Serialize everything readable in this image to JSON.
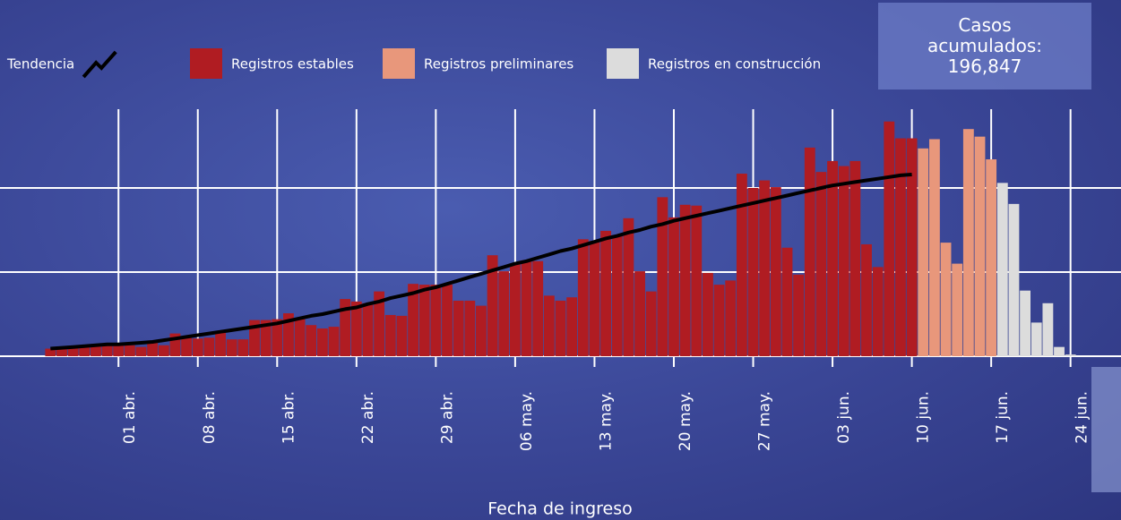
{
  "chart_data": {
    "type": "bar",
    "stacked": false,
    "x_label": "Fecha de ingreso",
    "cumulative_cases_title": "Casos acumulados:",
    "cumulative_cases": {
      "value": 196847,
      "label": "196,847"
    },
    "categories": [
      null,
      null,
      null,
      null,
      null,
      null,
      "01 abr.",
      null,
      null,
      null,
      null,
      null,
      null,
      "08 abr.",
      null,
      null,
      null,
      null,
      null,
      null,
      "15 abr.",
      null,
      null,
      null,
      null,
      null,
      null,
      "22 abr.",
      null,
      null,
      null,
      null,
      null,
      null,
      "29 abr.",
      null,
      null,
      null,
      null,
      null,
      null,
      "06 may.",
      null,
      null,
      null,
      null,
      null,
      null,
      "13 may.",
      null,
      null,
      null,
      null,
      null,
      null,
      "20 may.",
      null,
      null,
      null,
      null,
      null,
      null,
      "27 may.",
      null,
      null,
      null,
      null,
      null,
      null,
      "03 jun.",
      null,
      null,
      null,
      null,
      null,
      null,
      "10 jun.",
      null,
      null,
      null,
      null,
      null,
      null,
      "17 jun.",
      null,
      null,
      null,
      null,
      null,
      null,
      "24 jun."
    ],
    "series": [
      {
        "name": "Tendencia",
        "type": "line",
        "color": "#000000",
        "values": [
          9,
          10,
          11,
          12,
          13,
          14,
          14,
          15,
          16,
          17,
          19,
          21,
          23,
          25,
          27,
          29,
          31,
          33,
          35,
          37,
          39,
          42,
          45,
          48,
          50,
          53,
          56,
          58,
          62,
          65,
          69,
          72,
          75,
          79,
          82,
          86,
          90,
          94,
          98,
          102,
          106,
          110,
          113,
          117,
          121,
          125,
          128,
          132,
          136,
          140,
          143,
          147,
          150,
          154,
          157,
          161,
          164,
          167,
          170,
          173,
          176,
          179,
          182,
          185,
          188,
          191,
          194,
          197,
          200,
          203,
          205,
          207,
          209,
          211,
          213,
          215,
          216,
          null,
          null,
          null,
          null,
          null,
          null,
          null,
          null,
          null,
          null,
          null,
          null,
          null,
          null
        ]
      },
      {
        "name": "Registros estables",
        "type": "bar",
        "color": "#b01c22",
        "values": [
          9,
          10,
          10,
          11,
          12,
          13,
          13,
          13,
          11,
          16,
          13,
          27,
          23,
          21,
          22,
          28,
          20,
          20,
          43,
          43,
          44,
          51,
          44,
          37,
          33,
          35,
          68,
          65,
          63,
          77,
          49,
          48,
          86,
          85,
          85,
          85,
          66,
          66,
          60,
          120,
          101,
          109,
          114,
          113,
          72,
          66,
          70,
          139,
          137,
          149,
          144,
          164,
          101,
          77,
          189,
          165,
          180,
          179,
          99,
          85,
          90,
          217,
          200,
          209,
          201,
          129,
          97,
          248,
          219,
          232,
          226,
          232,
          133,
          106,
          279,
          259,
          259,
          null,
          null,
          null,
          null,
          null,
          null,
          null,
          null,
          null,
          null,
          null,
          null,
          null,
          null
        ]
      },
      {
        "name": "Registros preliminares",
        "type": "bar",
        "color": "#e8977b",
        "values": [
          null,
          null,
          null,
          null,
          null,
          null,
          null,
          null,
          null,
          null,
          null,
          null,
          null,
          null,
          null,
          null,
          null,
          null,
          null,
          null,
          null,
          null,
          null,
          null,
          null,
          null,
          null,
          null,
          null,
          null,
          null,
          null,
          null,
          null,
          null,
          null,
          null,
          null,
          null,
          null,
          null,
          null,
          null,
          null,
          null,
          null,
          null,
          null,
          null,
          null,
          null,
          null,
          null,
          null,
          null,
          null,
          null,
          null,
          null,
          null,
          null,
          null,
          null,
          null,
          null,
          null,
          null,
          null,
          null,
          null,
          null,
          null,
          null,
          null,
          null,
          null,
          null,
          247,
          258,
          135,
          110,
          270,
          261,
          234,
          null,
          null,
          null,
          null,
          null,
          null,
          null
        ]
      },
      {
        "name": "Registros en construcción",
        "type": "bar",
        "color": "#dcdcdc",
        "values": [
          null,
          null,
          null,
          null,
          null,
          null,
          null,
          null,
          null,
          null,
          null,
          null,
          null,
          null,
          null,
          null,
          null,
          null,
          null,
          null,
          null,
          null,
          null,
          null,
          null,
          null,
          null,
          null,
          null,
          null,
          null,
          null,
          null,
          null,
          null,
          null,
          null,
          null,
          null,
          null,
          null,
          null,
          null,
          null,
          null,
          null,
          null,
          null,
          null,
          null,
          null,
          null,
          null,
          null,
          null,
          null,
          null,
          null,
          null,
          null,
          null,
          null,
          null,
          null,
          null,
          null,
          null,
          null,
          null,
          null,
          null,
          null,
          null,
          null,
          null,
          null,
          null,
          null,
          null,
          null,
          null,
          null,
          null,
          null,
          206,
          181,
          78,
          40,
          63,
          11,
          2
        ]
      }
    ],
    "ylim": [
      0,
      300
    ],
    "yticks": [
      0,
      100,
      200
    ],
    "grid": true
  }
}
